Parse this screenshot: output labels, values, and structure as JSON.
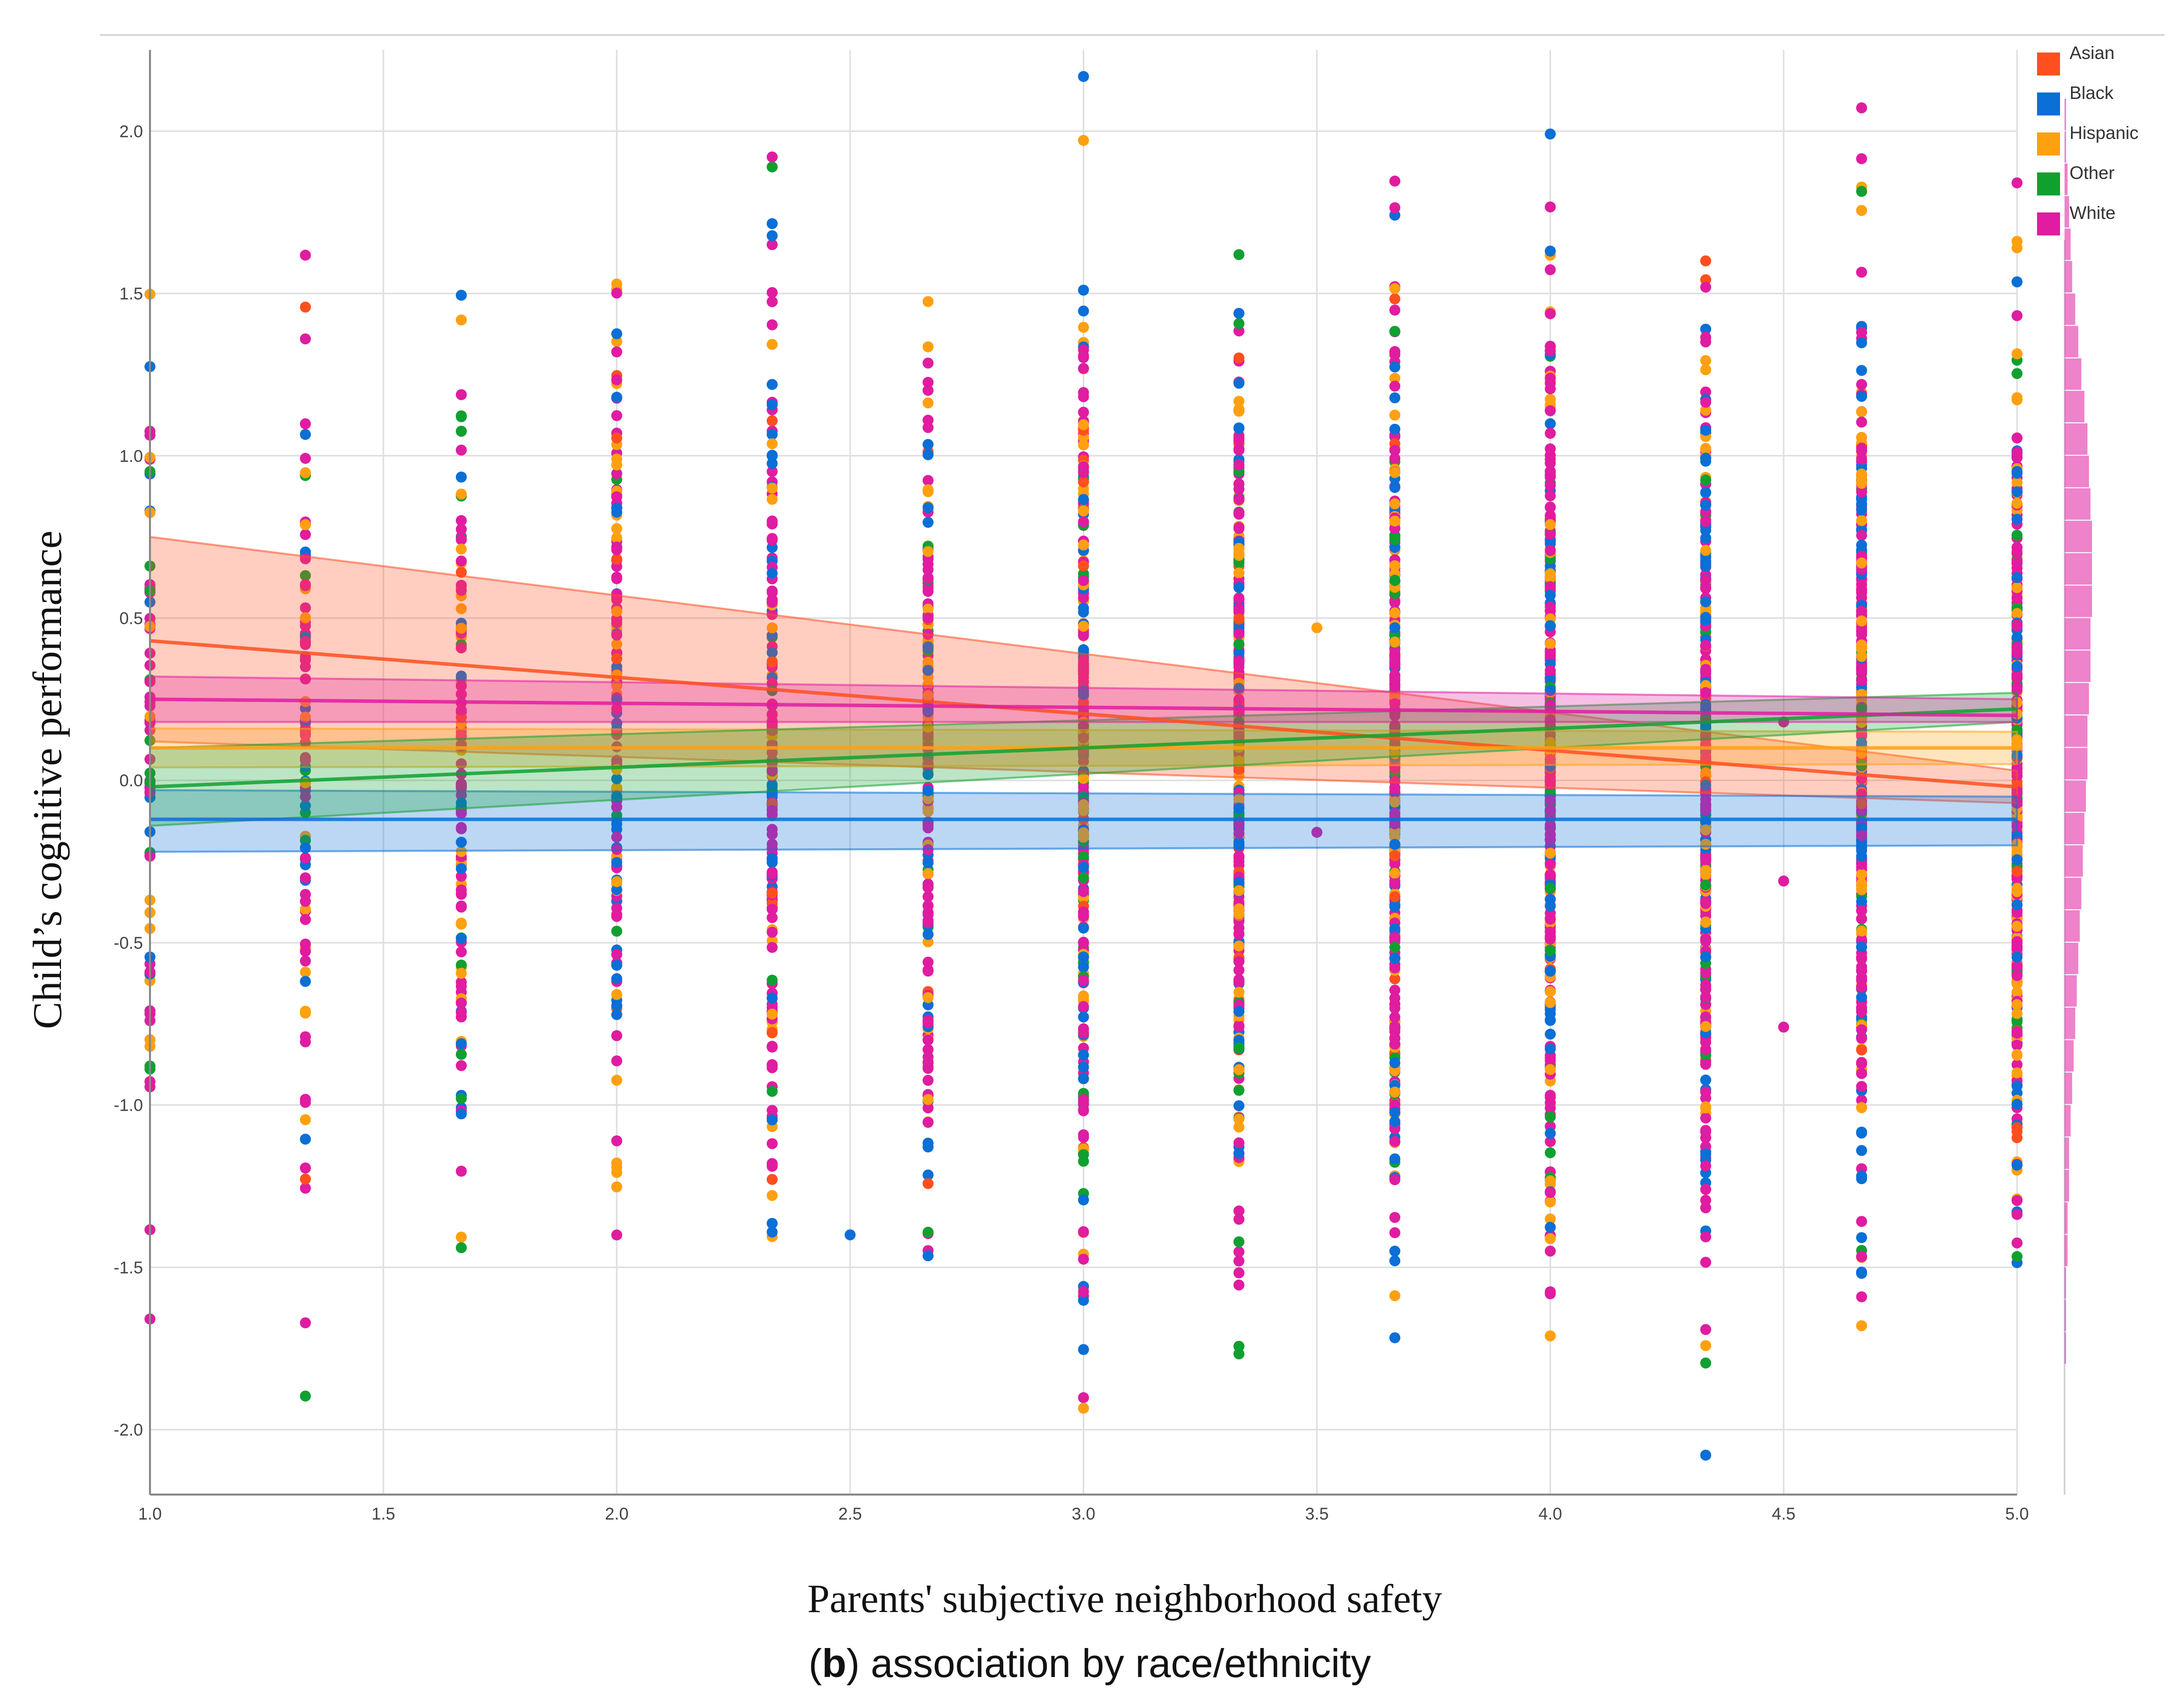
{
  "chart_data": {
    "type": "scatter",
    "title": "",
    "xlabel": "Parents' subjective neighborhood safety",
    "ylabel": "Child’s cognitive performance",
    "caption_letter": "b",
    "caption_text": ") association by race/ethnicity",
    "caption_open": "(",
    "xlim": [
      1.0,
      5.0
    ],
    "ylim": [
      -2.2,
      2.25
    ],
    "xticks": [
      "1.0",
      "1.5",
      "2.0",
      "2.5",
      "3.0",
      "3.5",
      "4.0",
      "4.5",
      "5.0"
    ],
    "yticks": [
      "2.0",
      "1.5",
      "1.0",
      "0.5",
      "0.0",
      "-0.5",
      "-1.0",
      "-1.5",
      "-2.0"
    ],
    "grid": true,
    "legend_position": "top-right",
    "x_levels": [
      1.0,
      1.333,
      1.667,
      2.0,
      2.333,
      2.667,
      3.0,
      3.333,
      3.667,
      4.0,
      4.333,
      4.667,
      5.0
    ],
    "series": [
      {
        "name": "Asian",
        "color": "#ff4f1f",
        "fit": {
          "x": [
            1.0,
            5.0
          ],
          "y": [
            0.43,
            -0.02
          ]
        },
        "ci": {
          "x": [
            1.0,
            5.0
          ],
          "lower": [
            0.12,
            -0.07
          ],
          "upper": [
            0.75,
            0.03
          ]
        }
      },
      {
        "name": "Black",
        "color": "#0a6fd6",
        "fit": {
          "x": [
            1.0,
            5.0
          ],
          "y": [
            -0.12,
            -0.12
          ]
        },
        "ci": {
          "x": [
            1.0,
            5.0
          ],
          "lower": [
            -0.22,
            -0.2
          ],
          "upper": [
            -0.03,
            -0.05
          ]
        }
      },
      {
        "name": "Hispanic",
        "color": "#ffa010",
        "fit": {
          "x": [
            1.0,
            5.0
          ],
          "y": [
            0.1,
            0.1
          ]
        },
        "ci": {
          "x": [
            1.0,
            5.0
          ],
          "lower": [
            0.04,
            0.05
          ],
          "upper": [
            0.16,
            0.15
          ]
        }
      },
      {
        "name": "Other",
        "color": "#10a030",
        "fit": {
          "x": [
            1.0,
            5.0
          ],
          "y": [
            -0.02,
            0.22
          ]
        },
        "ci": {
          "x": [
            1.0,
            5.0
          ],
          "lower": [
            -0.14,
            0.18
          ],
          "upper": [
            0.1,
            0.27
          ]
        }
      },
      {
        "name": "White",
        "color": "#e01ca0",
        "fit": {
          "x": [
            1.0,
            5.0
          ],
          "y": [
            0.25,
            0.2
          ]
        },
        "ci": {
          "x": [
            1.0,
            5.0
          ],
          "lower": [
            0.18,
            0.18
          ],
          "upper": [
            0.32,
            0.25
          ]
        }
      }
    ],
    "outlier_points": [
      {
        "x": 2.5,
        "y": -1.4,
        "series": "Black"
      },
      {
        "x": 3.5,
        "y": 0.47,
        "series": "Hispanic"
      },
      {
        "x": 3.5,
        "y": -0.16,
        "series": "White"
      },
      {
        "x": 4.5,
        "y": 0.18,
        "series": "White"
      },
      {
        "x": 4.5,
        "y": -0.31,
        "series": "White"
      },
      {
        "x": 4.5,
        "y": -0.76,
        "series": "White"
      }
    ],
    "marginal_histogram": {
      "series": "White",
      "bins_y_from": -2.2,
      "bins_y_step": 0.1,
      "counts": [
        0,
        0,
        0,
        0,
        1,
        1,
        1,
        2,
        2,
        3,
        3,
        4,
        5,
        6,
        7,
        8,
        9,
        10,
        11,
        12,
        13,
        14,
        15,
        15,
        16,
        17,
        17,
        18,
        18,
        18,
        17,
        16,
        15,
        13,
        11,
        9,
        7,
        5,
        4,
        3,
        2,
        1,
        1,
        0,
        0
      ]
    }
  }
}
